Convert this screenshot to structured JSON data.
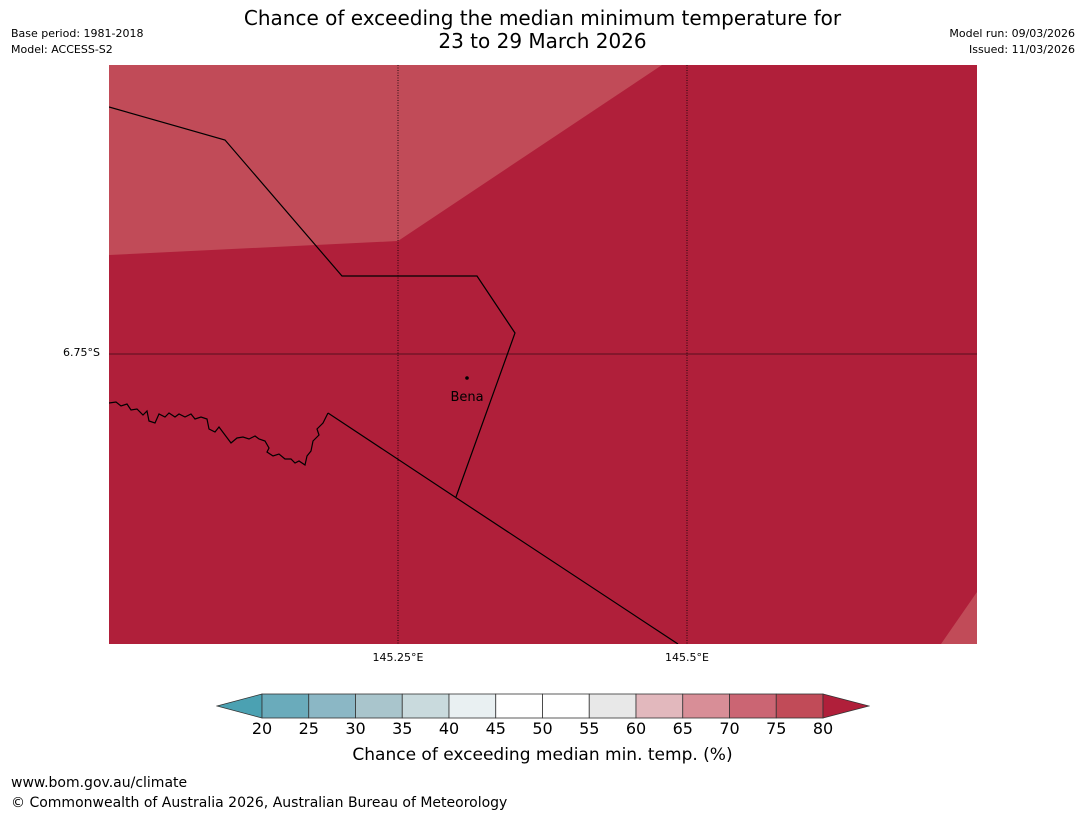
{
  "header": {
    "title_line1": "Chance of exceeding the median minimum temperature for",
    "title_line2": "23 to 29 March 2026",
    "base_period": "Base period: 1981-2018",
    "model": "Model: ACCESS-S2",
    "model_run": "Model run: 09/03/2026",
    "issued": "Issued: 11/03/2026"
  },
  "map": {
    "lat_label": "6.75°S",
    "lon_labels": [
      "145.25°E",
      "145.5°E"
    ],
    "place_name": "Bena",
    "colors": {
      "band_75_80": "#c14b58",
      "band_80_plus": "#b01f3a",
      "border": "#000000"
    }
  },
  "legend": {
    "ticks": [
      "20",
      "25",
      "30",
      "35",
      "40",
      "45",
      "50",
      "55",
      "60",
      "65",
      "70",
      "75",
      "80"
    ],
    "colors": [
      "#6aabbb",
      "#8bb7c5",
      "#a9c5cc",
      "#c9dadd",
      "#e9f0f2",
      "#ffffff",
      "#ffffff",
      "#e8e8e8",
      "#e2b8bd",
      "#d88e97",
      "#cb6573",
      "#c14b58"
    ],
    "under_color": "#4ba1b2",
    "over_color": "#b01f3a",
    "label": "Chance of exceeding median min. temp. (%)"
  },
  "footer": {
    "url": "www.bom.gov.au/climate",
    "copyright": "© Commonwealth of Australia 2026, Australian Bureau of Meteorology"
  }
}
